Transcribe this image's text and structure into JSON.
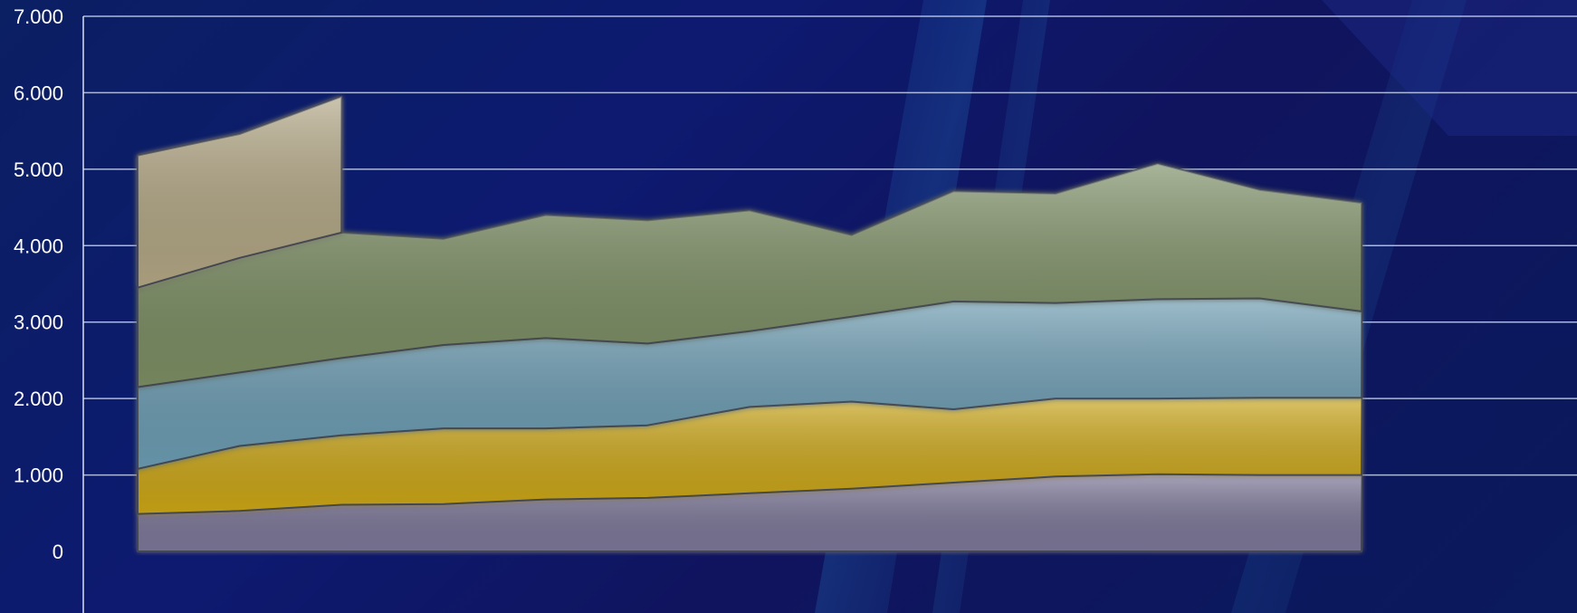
{
  "chart_data": {
    "type": "area",
    "stacked": true,
    "title": "",
    "xlabel": "",
    "ylabel": "",
    "ylim": [
      0,
      7000
    ],
    "yticks": [
      "0",
      "1.000",
      "2.000",
      "3.000",
      "4.000",
      "5.000",
      "6.000",
      "7.000"
    ],
    "ytick_values": [
      0,
      1000,
      2000,
      3000,
      4000,
      5000,
      6000,
      7000
    ],
    "grid": true,
    "legend": "none",
    "x": [
      1,
      2,
      3,
      4,
      5,
      6,
      7,
      8,
      9,
      10,
      11,
      12,
      13
    ],
    "series": [
      {
        "color": "#7a7496",
        "values": [
          490,
          530,
          610,
          620,
          680,
          700,
          760,
          820,
          900,
          980,
          1010,
          1000,
          1000
        ]
      },
      {
        "color": "#c9a418",
        "values": [
          590,
          850,
          910,
          990,
          930,
          950,
          1130,
          1140,
          960,
          1020,
          990,
          1010,
          1010
        ]
      },
      {
        "color": "#6a9ab0",
        "values": [
          1070,
          960,
          1010,
          1090,
          1180,
          1070,
          990,
          1110,
          1410,
          1250,
          1300,
          1300,
          1130
        ]
      },
      {
        "color": "#7a8c62",
        "values": [
          1300,
          1500,
          1640,
          1390,
          1610,
          1610,
          1580,
          1070,
          1440,
          1430,
          1770,
          1420,
          1420
        ]
      },
      {
        "color": "#b0a482",
        "values": [
          1730,
          1620,
          1780,
          null,
          null,
          null,
          null,
          null,
          null,
          null,
          null,
          null,
          null
        ]
      }
    ]
  }
}
